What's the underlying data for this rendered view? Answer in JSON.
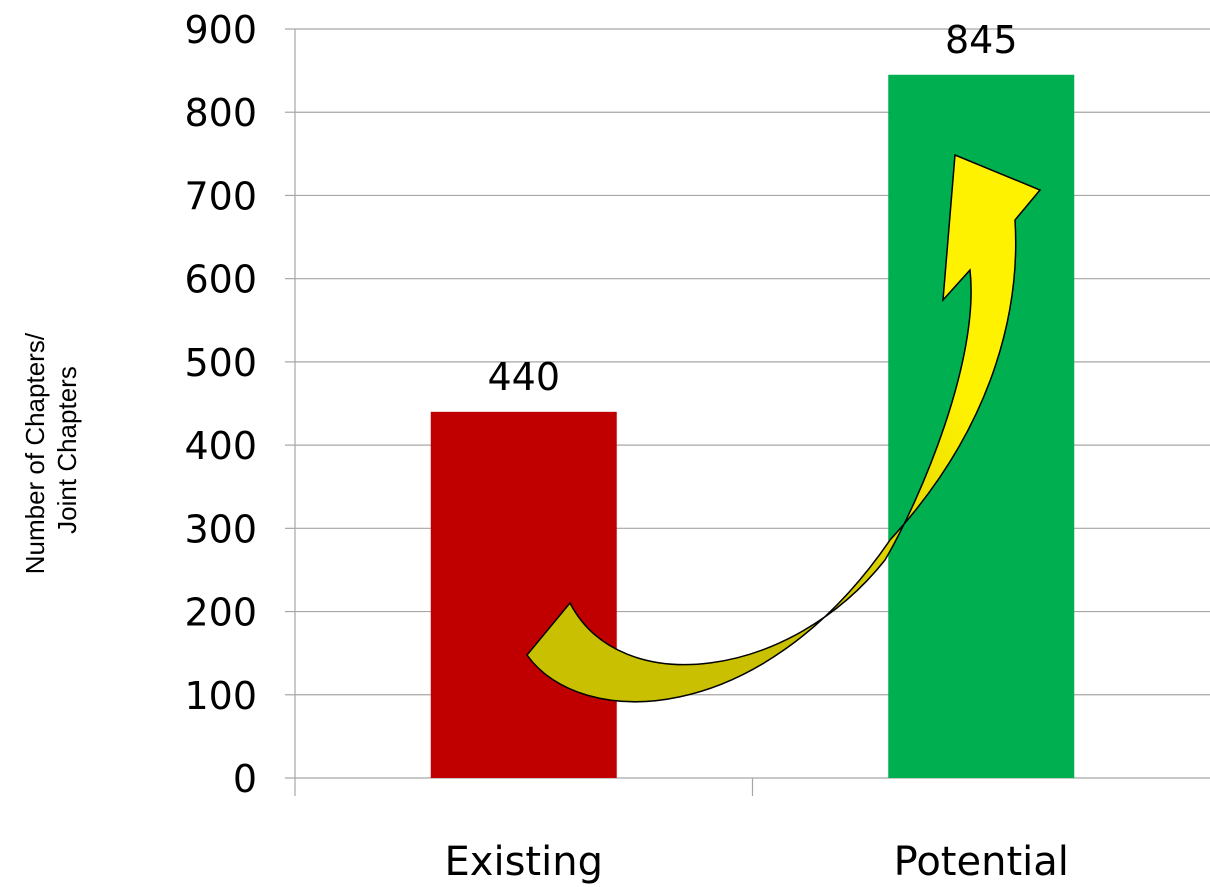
{
  "chart_data": {
    "type": "bar",
    "categories": [
      "Existing",
      "Potential"
    ],
    "values": [
      440,
      845
    ],
    "data_labels": [
      "440",
      "845"
    ],
    "bar_colors": [
      "#c00000",
      "#00b050"
    ],
    "ylabel_lines": [
      "Number of Chapters/",
      "Joint Chapters"
    ],
    "ylim": [
      0,
      900
    ],
    "yticks": [
      0,
      100,
      200,
      300,
      400,
      500,
      600,
      700,
      800,
      900
    ],
    "grid": true,
    "legend": "none",
    "annotation": {
      "type": "curved-arrow",
      "from": "Existing",
      "to": "Potential",
      "colors": [
        "#c8c000",
        "#fff200"
      ]
    }
  }
}
